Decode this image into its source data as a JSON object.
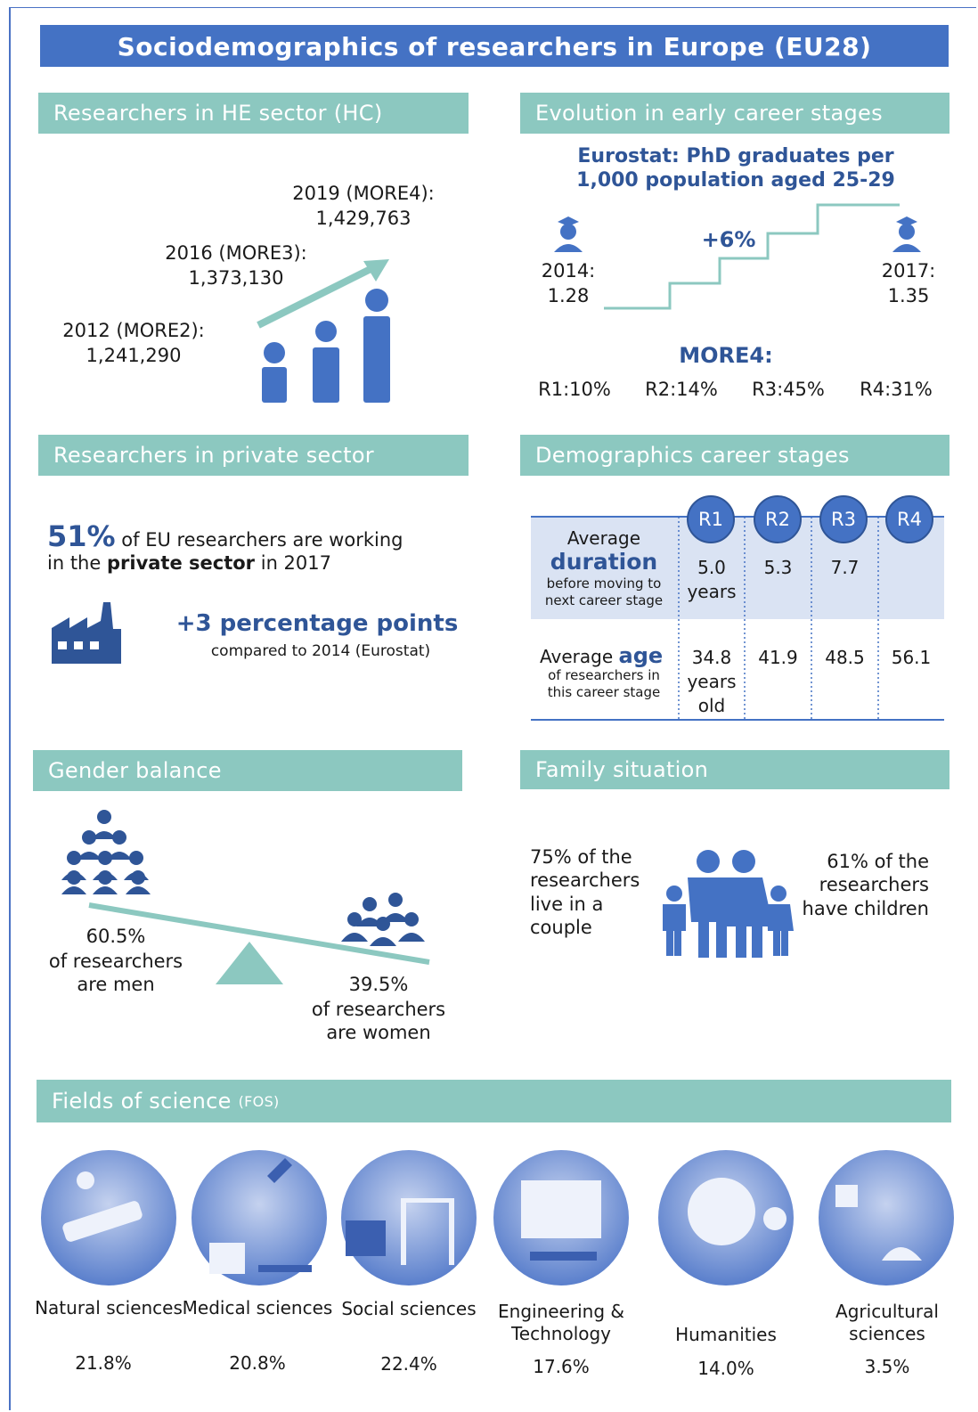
{
  "title": "Sociodemographics of researchers in Europe (EU28)",
  "he_sector": {
    "heading": "Researchers in HE sector (HC)",
    "items": [
      {
        "label": "2012 (MORE2):",
        "value": "1,241,290"
      },
      {
        "label": "2016 (MORE3):",
        "value": "1,373,130"
      },
      {
        "label": "2019 (MORE4):",
        "value": "1,429,763"
      }
    ]
  },
  "early_career": {
    "heading": "Evolution in early career stages",
    "subtitle_lines": [
      "Eurostat: PhD graduates per",
      "1,000 population aged 25-29"
    ],
    "start": {
      "label": "2014:",
      "value": "1.28"
    },
    "end": {
      "label": "2017:",
      "value": "1.35"
    },
    "change": "+6%",
    "more4_label": "MORE4:",
    "shares": [
      "R1:10%",
      "R2:14%",
      "R3:45%",
      "R4:31%"
    ]
  },
  "private_sector": {
    "heading": "Researchers in private sector",
    "share": "51%",
    "text_1": "of EU researchers are working",
    "text_2": "in the",
    "text_bold": "private sector",
    "text_3": "in 2017",
    "change": "+3 percentage points",
    "change_note": "compared to 2014 (Eurostat)"
  },
  "career_stages": {
    "heading": "Demographics career stages",
    "stages": [
      "R1",
      "R2",
      "R3",
      "R4"
    ],
    "duration": {
      "label_top": "Average",
      "label_main": "duration",
      "label_note": "before moving to next  career stage",
      "values": [
        "5.0 years",
        "5.3",
        "7.7"
      ]
    },
    "age": {
      "label_top": "Average",
      "label_main": "age",
      "label_note": "of researchers in this career stage",
      "values": [
        "34.8 years old",
        "41.9",
        "48.5",
        "56.1"
      ]
    }
  },
  "gender": {
    "heading": "Gender balance",
    "men_share": "60.5%",
    "men_text": "of researchers are men",
    "women_share": "39.5%",
    "women_text": "of researchers are women"
  },
  "family": {
    "heading": "Family situation",
    "couple": "75% of the researchers live in a couple",
    "children": "61% of the researchers have children"
  },
  "fields": {
    "heading": "Fields of science",
    "heading_note": "(FOS)",
    "items": [
      {
        "name": "Natural sciences",
        "share": "21.8%"
      },
      {
        "name": "Medical sciences",
        "share": "20.8%"
      },
      {
        "name": "Social sciences",
        "share": "22.4%"
      },
      {
        "name": "Engineering & Technology",
        "share": "17.6%"
      },
      {
        "name": "Humanities",
        "share": "14.0%"
      },
      {
        "name": "Agricultural sciences",
        "share": "3.5%"
      }
    ]
  }
}
